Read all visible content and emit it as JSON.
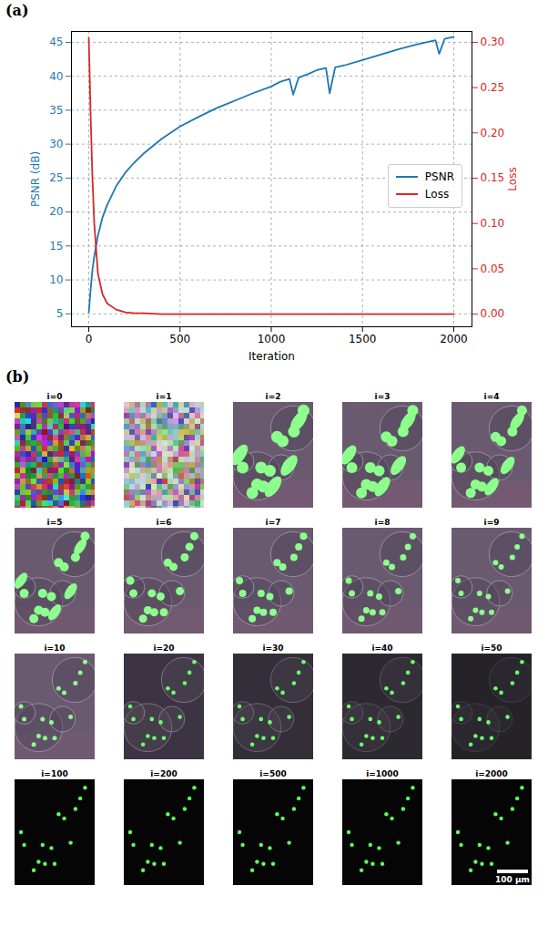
{
  "panel_labels": [
    "(a)",
    "(b)"
  ],
  "chart_data": {
    "type": "line",
    "x_label": "Iteration",
    "y_label": "PSNR (dB)",
    "y2_label": "Loss",
    "x": [
      0,
      10,
      20,
      30,
      50,
      75,
      100,
      150,
      200,
      250,
      300,
      400,
      500,
      600,
      700,
      800,
      900,
      1000,
      1050,
      1100,
      1120,
      1150,
      1200,
      1250,
      1300,
      1320,
      1350,
      1400,
      1500,
      1600,
      1700,
      1800,
      1850,
      1900,
      1920,
      1950,
      2000
    ],
    "series": [
      {
        "name": "PSNR",
        "color": "#1f77b4",
        "values": [
          5.2,
          8.5,
          11.5,
          13.5,
          16.5,
          19.2,
          21.0,
          23.8,
          25.8,
          27.3,
          28.6,
          30.8,
          32.6,
          34.0,
          35.3,
          36.4,
          37.5,
          38.5,
          39.2,
          39.6,
          37.3,
          39.8,
          40.3,
          40.9,
          41.2,
          37.5,
          41.3,
          41.6,
          42.4,
          43.2,
          44.0,
          44.7,
          45.0,
          45.3,
          43.3,
          45.5,
          45.8
        ]
      },
      {
        "name": "Loss",
        "color": "#d62728",
        "axis": "y2",
        "values": [
          0.305,
          0.22,
          0.15,
          0.1,
          0.045,
          0.022,
          0.012,
          0.005,
          0.002,
          0.001,
          0.001,
          0,
          0,
          0,
          0,
          0,
          0,
          0,
          0,
          0,
          0,
          0,
          0,
          0,
          0,
          0,
          0,
          0,
          0,
          0,
          0,
          0,
          0,
          0,
          0,
          0,
          0
        ]
      }
    ],
    "xlim": [
      -95,
      2100
    ],
    "xticks": [
      0,
      500,
      1000,
      1500,
      2000
    ],
    "ylim": [
      3.1,
      46.6
    ],
    "yticks": [
      5,
      10,
      15,
      20,
      25,
      30,
      35,
      40,
      45
    ],
    "y2lim": [
      -0.014,
      0.312
    ],
    "y2ticks": [
      {
        "value": 0,
        "label": "0.00"
      },
      {
        "value": 0.05,
        "label": "0.05"
      },
      {
        "value": 0.1,
        "label": "0.10"
      },
      {
        "value": 0.15,
        "label": "0.15"
      },
      {
        "value": 0.2,
        "label": "0.20"
      },
      {
        "value": 0.25,
        "label": "0.25"
      },
      {
        "value": 0.3,
        "label": "0.30"
      }
    ],
    "grid": true,
    "legend": "right"
  },
  "image_grid": {
    "titles": [
      "i=0",
      "i=1",
      "i=2",
      "i=3",
      "i=4",
      "i=5",
      "i=6",
      "i=7",
      "i=8",
      "i=9",
      "i=10",
      "i=20",
      "i=30",
      "i=40",
      "i=50",
      "i=100",
      "i=200",
      "i=500",
      "i=1000",
      "i=2000"
    ],
    "scale_bar": "100 μm"
  }
}
